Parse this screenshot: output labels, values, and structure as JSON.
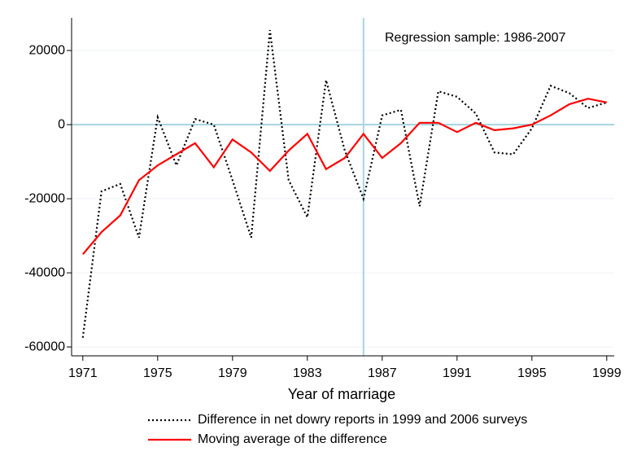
{
  "chart_data": {
    "type": "line",
    "x": [
      1971,
      1972,
      1973,
      1974,
      1975,
      1976,
      1977,
      1978,
      1979,
      1980,
      1981,
      1982,
      1983,
      1984,
      1985,
      1986,
      1987,
      1988,
      1989,
      1990,
      1991,
      1992,
      1993,
      1994,
      1995,
      1996,
      1997,
      1998,
      1999
    ],
    "series": [
      {
        "name": "Difference in net dowry reports in 1999 and 2006 surveys",
        "color": "#000000",
        "dash": "dotted",
        "values": [
          -57500,
          -18000,
          -16000,
          -30500,
          2000,
          -11000,
          1500,
          0,
          -15000,
          -30500,
          25500,
          -15000,
          -25000,
          12000,
          -7000,
          -20000,
          2500,
          4000,
          -22000,
          9000,
          7500,
          3000,
          -7500,
          -8000,
          -1000,
          10500,
          8500,
          4500,
          6000
        ]
      },
      {
        "name": "Moving average of the difference",
        "color": "#ff0000",
        "dash": "solid",
        "values": [
          -35000,
          -29000,
          -24500,
          -15000,
          -11000,
          -8000,
          -5000,
          -11500,
          -4000,
          -7500,
          -12500,
          -7000,
          -2500,
          -12000,
          -9000,
          -2500,
          -9000,
          -5000,
          500,
          500,
          -2000,
          500,
          -1500,
          -1000,
          0,
          2500,
          5500,
          7000,
          6000
        ]
      }
    ],
    "x_label": "Year of marriage",
    "annotation": "Regression sample: 1986-2007",
    "reference_lines": {
      "y": 0,
      "x": 1986,
      "color": "#a8d4e0"
    },
    "xlim": [
      1970.4,
      1999.4
    ],
    "xticks": [
      1971,
      1975,
      1979,
      1983,
      1987,
      1991,
      1995,
      1999
    ],
    "ylim": [
      -62400,
      28800
    ],
    "yticks": [
      -60000,
      -40000,
      -20000,
      0,
      20000
    ],
    "grid": true
  }
}
